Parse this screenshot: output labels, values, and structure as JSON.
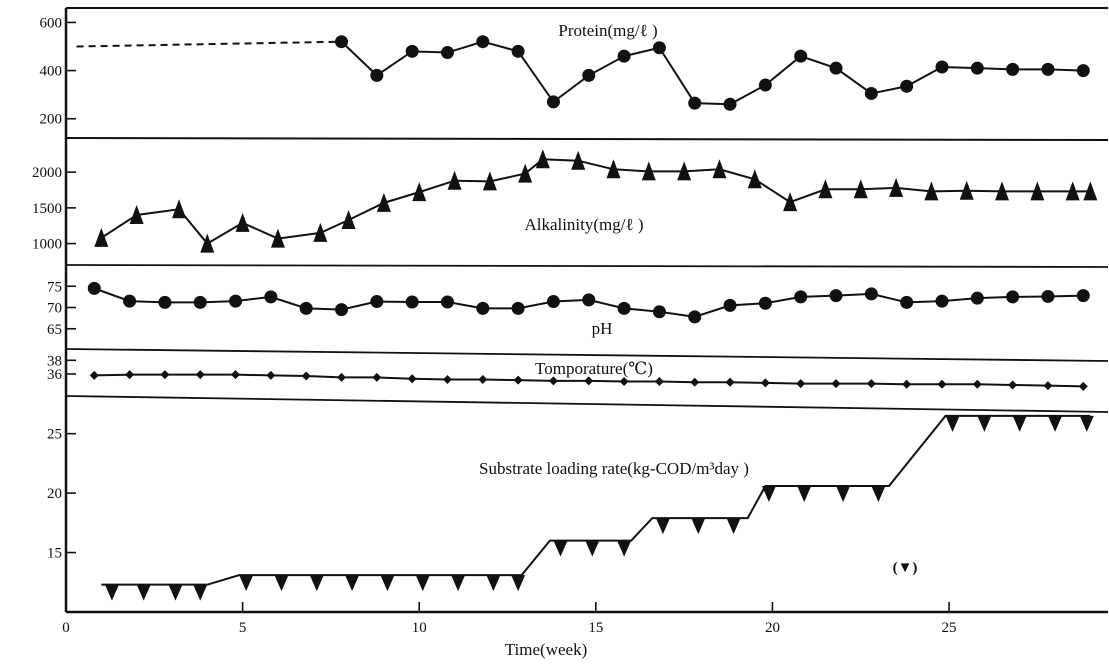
{
  "chart_data": {
    "type": "line",
    "xlabel": "Time(week)",
    "x_ticks": [
      0,
      5,
      10,
      15,
      20,
      25
    ],
    "xlim": [
      0,
      29.5
    ],
    "panels": [
      {
        "key": "protein",
        "title": "Protein(mg/ℓ )",
        "ylim": [
          120,
          660
        ],
        "y_ticks": [
          200,
          400,
          600
        ],
        "marker": "circle",
        "dashed_lead": {
          "x": [
            0.3,
            7.8
          ],
          "y": [
            500,
            520
          ]
        },
        "series": [
          {
            "x": [
              7.8,
              8.8,
              9.8,
              10.8,
              11.8,
              12.8,
              13.8,
              14.8,
              15.8,
              16.8,
              17.8,
              18.8,
              19.8,
              20.8,
              21.8,
              22.8,
              23.8,
              24.8,
              25.8,
              26.8,
              27.8,
              28.8
            ],
            "y": [
              520,
              380,
              480,
              475,
              520,
              480,
              270,
              380,
              460,
              495,
              265,
              260,
              340,
              460,
              410,
              305,
              335,
              415,
              410,
              405,
              405,
              400
            ]
          }
        ]
      },
      {
        "key": "alkalinity",
        "title": "Alkalinity(mg/ℓ )",
        "ylim": [
          700,
          2450
        ],
        "y_ticks": [
          1000,
          1500,
          2000
        ],
        "marker": "triangle-up",
        "series": [
          {
            "x": [
              1.0,
              2.0,
              3.2,
              4.0,
              5.0,
              6.0,
              7.2,
              8.0,
              9.0,
              10.0,
              11.0,
              12.0,
              13.0,
              13.5,
              14.5,
              15.5,
              16.5,
              17.5,
              18.5,
              19.5,
              20.5,
              21.5,
              22.5,
              23.5,
              24.5,
              25.5,
              26.5,
              27.5,
              28.5,
              29.0
            ],
            "y": [
              1080,
              1400,
              1480,
              1000,
              1290,
              1070,
              1150,
              1330,
              1570,
              1720,
              1880,
              1870,
              1980,
              2180,
              2160,
              2040,
              2010,
              2010,
              2040,
              1900,
              1580,
              1760,
              1760,
              1780,
              1730,
              1740,
              1730,
              1730,
              1730,
              1730
            ]
          }
        ]
      },
      {
        "key": "ph",
        "title": "pH",
        "ylim": [
          60,
          80
        ],
        "y_ticks": [
          65,
          70,
          75
        ],
        "y_tick_labels": [
          "65",
          "70",
          "75"
        ],
        "marker": "circle",
        "series": [
          {
            "x": [
              0.8,
              1.8,
              2.8,
              3.8,
              4.8,
              5.8,
              6.8,
              7.8,
              8.8,
              9.8,
              10.8,
              11.8,
              12.8,
              13.8,
              14.8,
              15.8,
              16.8,
              17.8,
              18.8,
              19.8,
              20.8,
              21.8,
              22.8,
              23.8,
              24.8,
              25.8,
              26.8,
              27.8,
              28.8
            ],
            "y": [
              74.5,
              71.5,
              71.2,
              71.2,
              71.5,
              72.5,
              69.8,
              69.5,
              71.4,
              71.3,
              71.3,
              69.8,
              69.8,
              71.4,
              71.8,
              69.8,
              69.0,
              67.8,
              70.5,
              71.0,
              72.5,
              72.8,
              73.2,
              71.2,
              71.5,
              72.2,
              72.5,
              72.6,
              72.8
            ]
          }
        ]
      },
      {
        "key": "temperature",
        "title": "Tomporature(℃)",
        "ylim": [
          32.5,
          39.5
        ],
        "y_ticks": [
          36,
          38
        ],
        "marker": "diamond",
        "series": [
          {
            "x": [
              0.8,
              1.8,
              2.8,
              3.8,
              4.8,
              5.8,
              6.8,
              7.8,
              8.8,
              9.8,
              10.8,
              11.8,
              12.8,
              13.8,
              14.8,
              15.8,
              16.8,
              17.8,
              18.8,
              19.8,
              20.8,
              21.8,
              22.8,
              23.8,
              24.8,
              25.8,
              26.8,
              27.8,
              28.8
            ],
            "y": [
              35.8,
              35.9,
              35.9,
              35.9,
              35.9,
              35.8,
              35.7,
              35.5,
              35.5,
              35.3,
              35.2,
              35.2,
              35.1,
              35.0,
              35.0,
              34.9,
              34.9,
              34.8,
              34.8,
              34.7,
              34.6,
              34.6,
              34.6,
              34.5,
              34.5,
              34.5,
              34.4,
              34.3,
              34.2
            ]
          }
        ]
      },
      {
        "key": "loading",
        "title": "Substrate loading rate(kg-COD/m³day )",
        "ylim": [
          10,
          28
        ],
        "y_ticks": [
          15,
          20,
          25
        ],
        "marker": "triangle-down",
        "legend_marker_label": "(▼)",
        "series": [
          {
            "x": [
              1.0,
              4.0,
              4.9,
              12.9,
              13.7,
              16.0,
              16.6,
              19.3,
              19.8,
              23.3,
              24.9,
              29.0
            ],
            "y": [
              12.3,
              12.3,
              13.1,
              13.1,
              16.0,
              16.0,
              17.9,
              17.9,
              20.6,
              20.6,
              26.5,
              26.5
            ]
          }
        ],
        "markers_x": [
          1.3,
          2.2,
          3.1,
          3.8,
          5.1,
          6.1,
          7.1,
          8.1,
          9.1,
          10.1,
          11.1,
          12.1,
          12.8,
          14.0,
          14.9,
          15.8,
          16.9,
          17.9,
          18.9,
          19.9,
          20.9,
          22.0,
          23.0,
          25.1,
          26.0,
          27.0,
          28.0,
          28.9
        ]
      }
    ]
  }
}
